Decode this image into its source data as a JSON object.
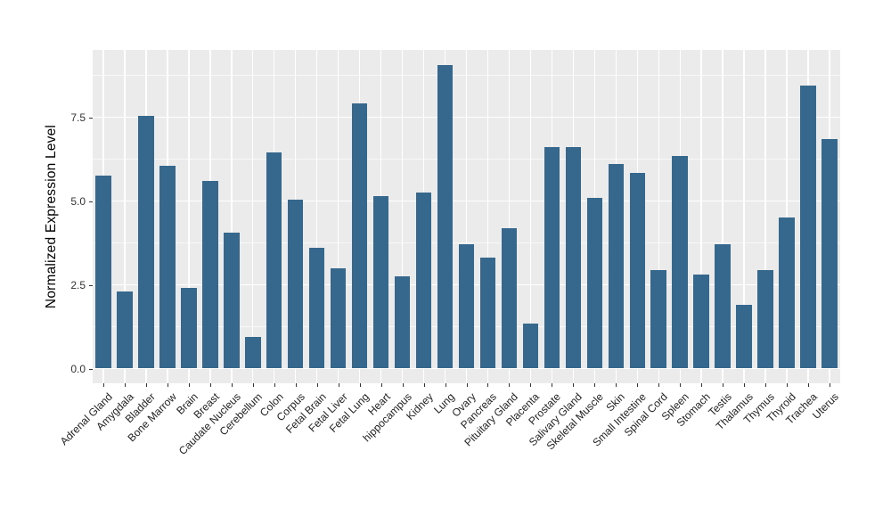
{
  "figure": {
    "background_color": "#FFFFFF",
    "panel_background_color": "#EBEBEB",
    "gridline_color": "#FFFFFF",
    "bar_color": "#36678D",
    "tick_label_color": "#333333"
  },
  "chart_data": {
    "type": "bar",
    "title": "",
    "xlabel": "",
    "ylabel": "Normalized Expression Level",
    "legend": "none",
    "grid": "white major and minor horizontal gridlines plus vertical category gridlines on gray panel (ggplot style)",
    "x_tick_rotation_degrees": 45,
    "ylim": [
      -0.45,
      9.5
    ],
    "yticks": [
      0.0,
      2.5,
      5.0,
      7.5
    ],
    "ytick_labels": [
      "0.0",
      "2.5",
      "5.0",
      "7.5"
    ],
    "minor_yticks": [
      1.25,
      3.75,
      6.25,
      8.75
    ],
    "bar_color": "#36678D",
    "categories": [
      "Adrenal Gland",
      "Amygdala",
      "Bladder",
      "Bone Marrow",
      "Brain",
      "Breast",
      "Caudate Nucleus",
      "Cerebellum",
      "Colon",
      "Corpus",
      "Fetal Brain",
      "Fetal Liver",
      "Fetal Lung",
      "Heart",
      "hippocampus",
      "Kidney",
      "Lung",
      "Ovary",
      "Pancreas",
      "Pituitary Gland",
      "Placenta",
      "Prostate",
      "Salivary Gland",
      "Skeletal Muscle",
      "Skin",
      "Small Intestine",
      "Spinal Cord",
      "Spleen",
      "Stomach",
      "Testis",
      "Thalamus",
      "Thymus",
      "Thyroid",
      "Trachea",
      "Uterus"
    ],
    "values": [
      5.75,
      2.3,
      7.55,
      6.05,
      2.4,
      5.6,
      4.05,
      0.95,
      6.45,
      5.05,
      3.6,
      3.0,
      7.9,
      5.15,
      2.75,
      5.25,
      9.05,
      3.7,
      3.3,
      4.2,
      1.35,
      6.6,
      6.6,
      5.1,
      6.1,
      5.85,
      2.95,
      6.35,
      2.8,
      3.7,
      1.9,
      2.95,
      4.5,
      8.45,
      6.85
    ]
  }
}
